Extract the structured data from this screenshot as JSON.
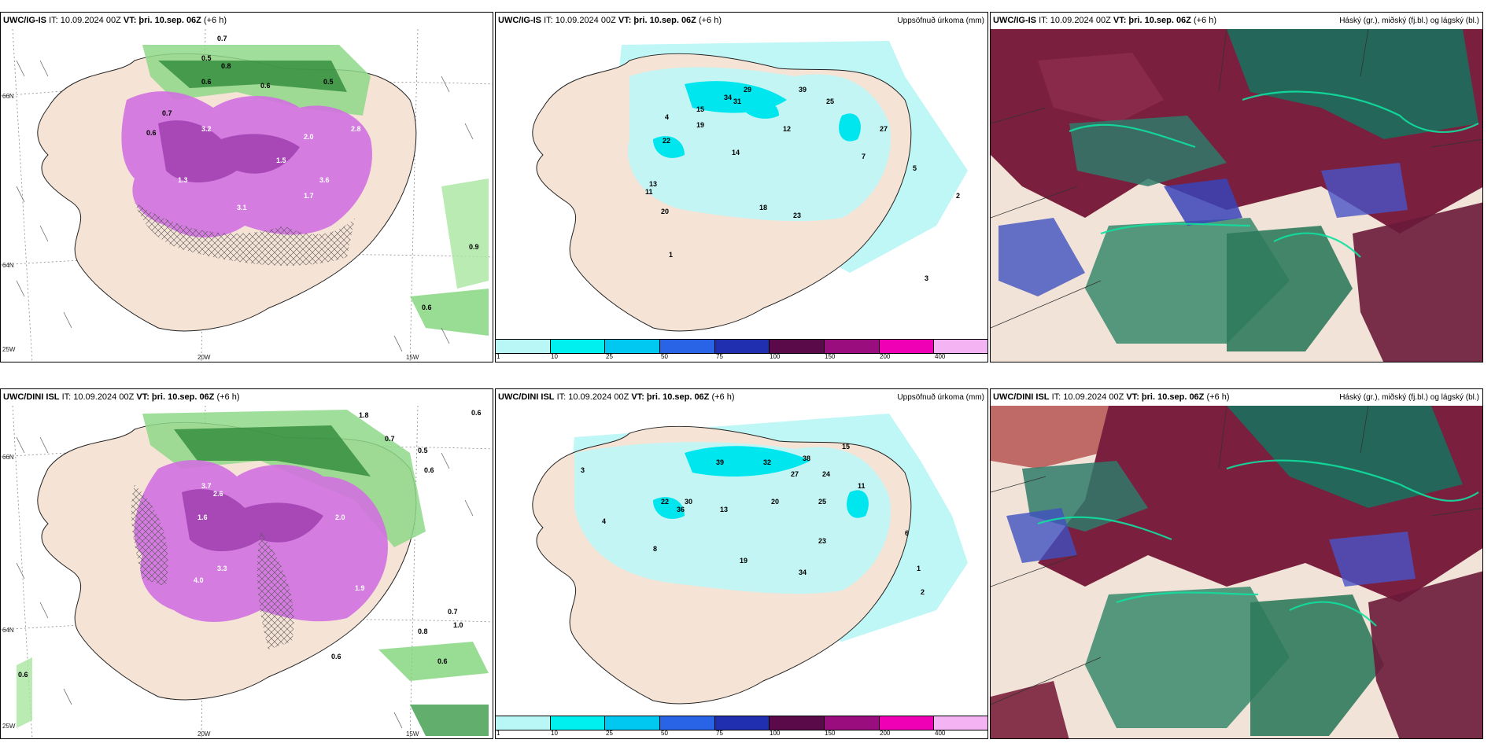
{
  "panels": [
    {
      "id": "r1c1",
      "model": "UWC/IG-IS",
      "it": "IT: 10.09.2024 00Z",
      "vt": "VT: þri. 10.sep. 06Z",
      "offset": "(+6 h)",
      "title": "",
      "kind": "cloud-precip",
      "lat_labels": [
        "66N",
        "64N"
      ],
      "lon_labels": [
        "25W",
        "20W",
        "15W"
      ],
      "values": [
        "0.7",
        "0.5",
        "0.8",
        "0.6",
        "0.5",
        "0.6",
        "0.7",
        "0.6",
        "3.2",
        "1.5",
        "2.0",
        "2.8",
        "1.3",
        "3.1",
        "1.7",
        "3.6",
        "0.9",
        "0.6"
      ]
    },
    {
      "id": "r1c2",
      "model": "UWC/IG-IS",
      "it": "IT: 10.09.2024 00Z",
      "vt": "VT: þri. 10.sep. 06Z",
      "offset": "(+6 h)",
      "title": "Uppsöfnuð úrkoma (mm)",
      "kind": "accum",
      "values": [
        "34",
        "29",
        "31",
        "39",
        "25",
        "19",
        "27",
        "15",
        "22",
        "14",
        "13",
        "18",
        "23",
        "20",
        "11",
        "12",
        "7",
        "5",
        "4",
        "2",
        "1",
        "3"
      ]
    },
    {
      "id": "r1c3",
      "model": "UWC/IG-IS",
      "it": "IT: 10.09.2024 00Z",
      "vt": "VT: þri. 10.sep. 06Z",
      "offset": "(+6 h)",
      "title": "Háský (gr.), miðský (fj.bl.) og lágský (bl.)",
      "kind": "cloud-layers"
    },
    {
      "id": "r2c1",
      "model": "UWC/DINI ISL",
      "it": "IT: 10.09.2024 00Z",
      "vt": "VT: þri. 10.sep. 06Z",
      "offset": "(+6 h)",
      "title": "",
      "kind": "cloud-precip",
      "lat_labels": [
        "66N",
        "64N"
      ],
      "lon_labels": [
        "25W",
        "20W",
        "15W"
      ],
      "values": [
        "0.6",
        "1.8",
        "0.7",
        "0.5",
        "0.6",
        "3.7",
        "2.6",
        "2.0",
        "1.6",
        "4.0",
        "3.3",
        "1.9",
        "0.8",
        "0.6",
        "0.7",
        "1.0",
        "0.6",
        "0.6"
      ]
    },
    {
      "id": "r2c2",
      "model": "UWC/DINI ISL",
      "it": "IT: 10.09.2024 00Z",
      "vt": "VT: þri. 10.sep. 06Z",
      "offset": "(+6 h)",
      "title": "Uppsöfnuð úrkoma (mm)",
      "kind": "accum",
      "values": [
        "39",
        "32",
        "38",
        "24",
        "27",
        "15",
        "30",
        "36",
        "22",
        "25",
        "20",
        "13",
        "23",
        "19",
        "34",
        "11",
        "8",
        "6",
        "4",
        "2",
        "1",
        "3"
      ]
    },
    {
      "id": "r2c3",
      "model": "UWC/DINI ISL",
      "it": "IT: 10.09.2024 00Z",
      "vt": "VT: þri. 10.sep. 06Z",
      "offset": "(+6 h)",
      "title": "Háský (gr.), miðský (fj.bl.) og lágský (bl.)",
      "kind": "cloud-layers"
    }
  ],
  "colorbar": {
    "labels": [
      "1",
      "10",
      "25",
      "50",
      "75",
      "100",
      "150",
      "200",
      "400"
    ],
    "colors": [
      "#b9f7f7",
      "#00f0f0",
      "#00c8f0",
      "#2a64e6",
      "#1f2fb0",
      "#5a0a48",
      "#9a0d7e",
      "#f000b4",
      "#f4b4f4"
    ]
  }
}
